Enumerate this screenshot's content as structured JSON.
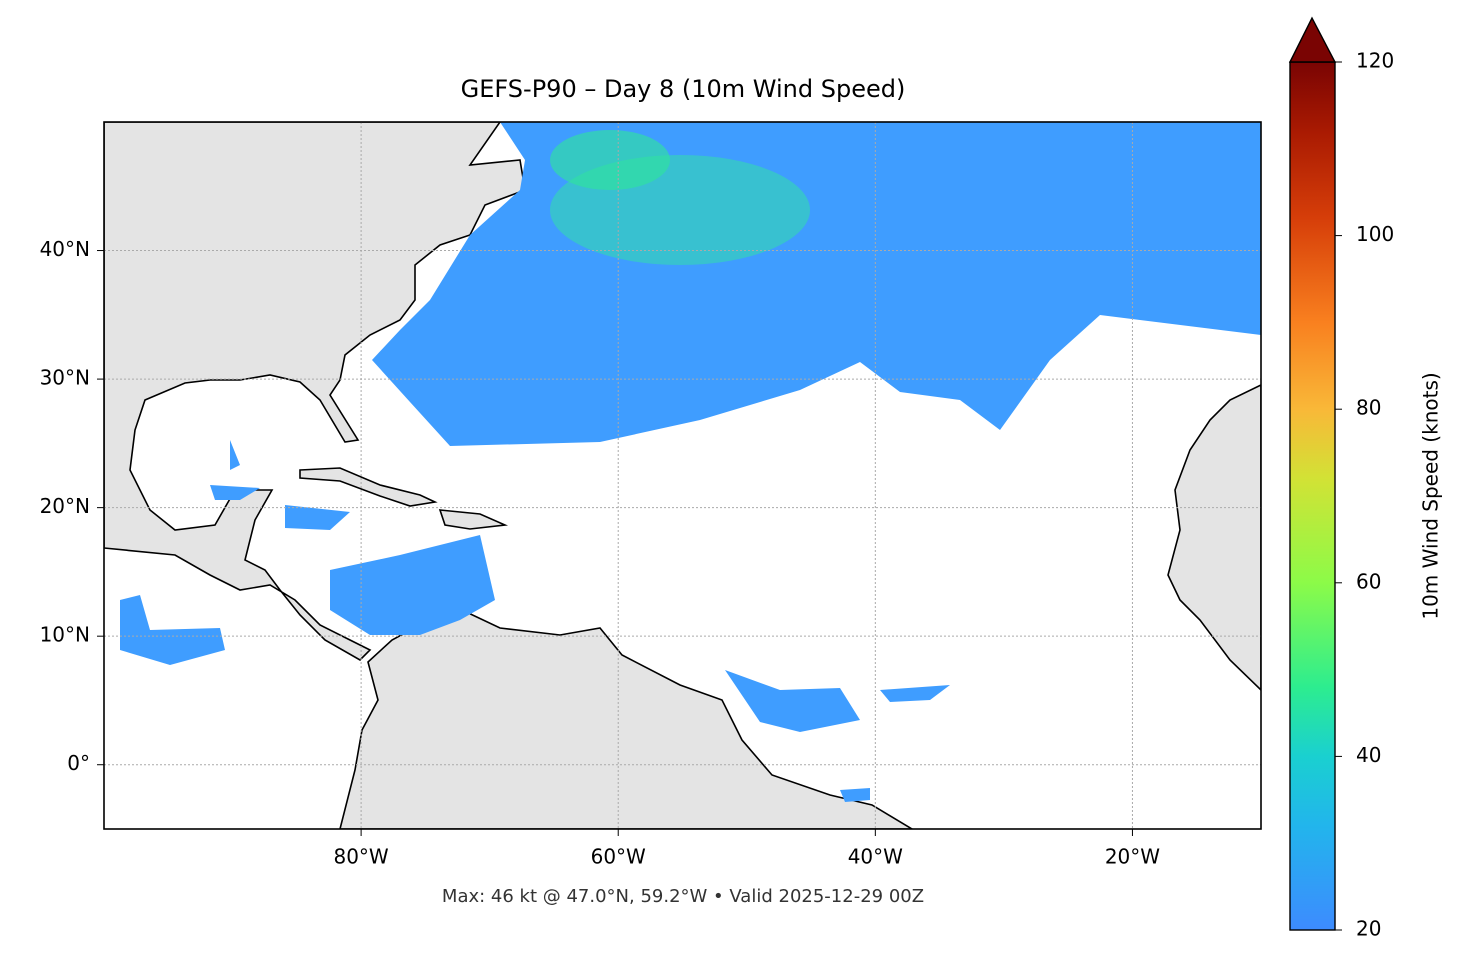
{
  "chart_data": {
    "type": "map",
    "title": "GEFS-P90 – Day 8 (10m Wind Speed)",
    "footnote": "Max: 46 kt @ 47.0°N, 59.2°W • Valid 2025-12-29 00Z",
    "xlim": [
      -100,
      -10
    ],
    "xticks": [
      {
        "value": -80,
        "label": "80°W"
      },
      {
        "value": -60,
        "label": "60°W"
      },
      {
        "value": -40,
        "label": "40°W"
      },
      {
        "value": -20,
        "label": "20°W"
      }
    ],
    "ylim": [
      -5,
      50
    ],
    "yticks": [
      {
        "value": 0,
        "label": "0°"
      },
      {
        "value": 10,
        "label": "10°N"
      },
      {
        "value": 20,
        "label": "20°N"
      },
      {
        "value": 30,
        "label": "30°N"
      },
      {
        "value": 40,
        "label": "40°N"
      }
    ],
    "grid": true,
    "colorbar": {
      "label": "10m Wind Speed (knots)",
      "lim": [
        20,
        120
      ],
      "ticks": [
        20,
        40,
        60,
        80,
        100,
        120
      ]
    }
  }
}
